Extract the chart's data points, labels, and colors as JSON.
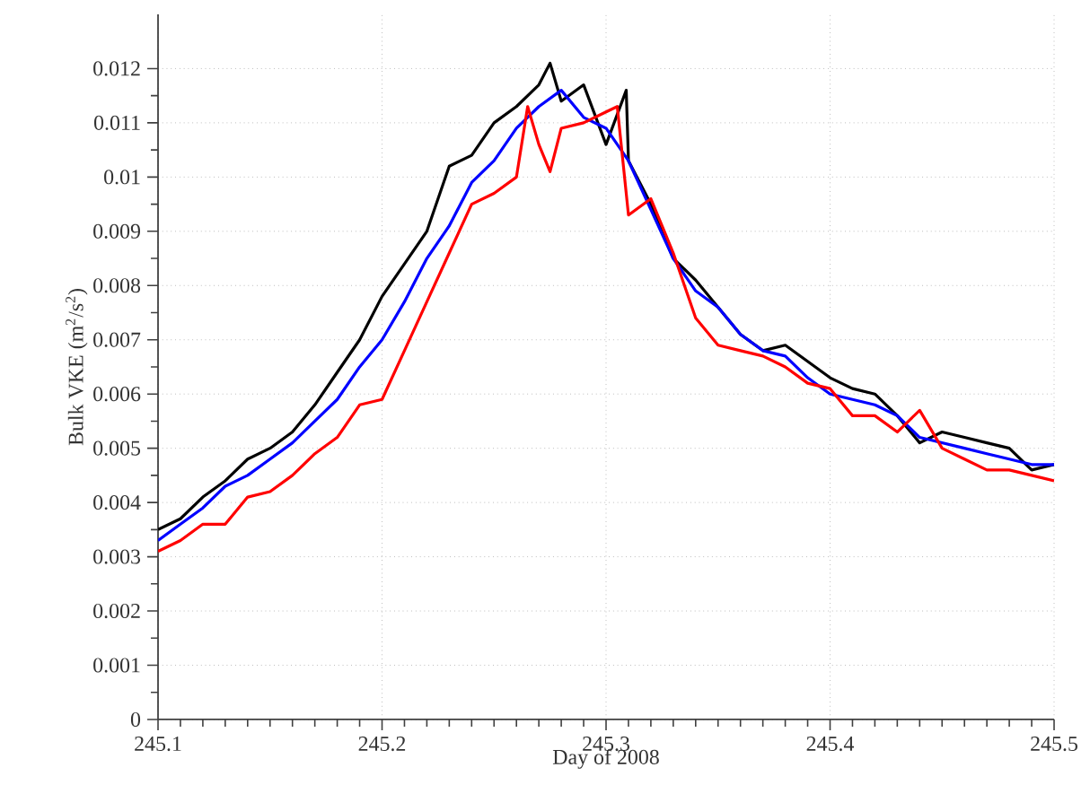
{
  "chart_data": {
    "type": "line",
    "xlabel": "Day of 2008",
    "ylabel": "Bulk VKE (m$^{2}$/s$^{2}$)",
    "xlim": [
      245.1,
      245.5
    ],
    "xticks": [
      245.1,
      245.2,
      245.3,
      245.4,
      245.5
    ],
    "ylim": [
      0,
      0.013
    ],
    "yticks": [
      0,
      0.001,
      0.002,
      0.003,
      0.004,
      0.005,
      0.006,
      0.007,
      0.008,
      0.009,
      0.01,
      0.011,
      0.012
    ],
    "grid": true,
    "line_style": "solid",
    "marker": "none",
    "series": [
      {
        "color": "#000000",
        "x": [
          245.1,
          245.11,
          245.12,
          245.13,
          245.14,
          245.15,
          245.16,
          245.17,
          245.18,
          245.19,
          245.2,
          245.21,
          245.22,
          245.23,
          245.24,
          245.25,
          245.26,
          245.27,
          245.275,
          245.28,
          245.29,
          245.3,
          245.309,
          245.31,
          245.32,
          245.33,
          245.34,
          245.35,
          245.36,
          245.37,
          245.38,
          245.39,
          245.4,
          245.41,
          245.42,
          245.43,
          245.44,
          245.45,
          245.46,
          245.47,
          245.48,
          245.49,
          245.5
        ],
        "values": [
          0.0035,
          0.0037,
          0.0041,
          0.0044,
          0.0048,
          0.005,
          0.0053,
          0.0058,
          0.0064,
          0.007,
          0.0078,
          0.0084,
          0.009,
          0.0102,
          0.0104,
          0.011,
          0.0113,
          0.0117,
          0.0121,
          0.0114,
          0.0117,
          0.0106,
          0.0116,
          0.0103,
          0.0095,
          0.0085,
          0.0081,
          0.0076,
          0.0071,
          0.0068,
          0.0069,
          0.0066,
          0.0063,
          0.0061,
          0.006,
          0.0056,
          0.0051,
          0.0053,
          0.0052,
          0.0051,
          0.005,
          0.0046,
          0.0047
        ]
      },
      {
        "color": "#0000ff",
        "x": [
          245.1,
          245.11,
          245.12,
          245.13,
          245.14,
          245.15,
          245.16,
          245.17,
          245.18,
          245.19,
          245.2,
          245.21,
          245.22,
          245.23,
          245.24,
          245.25,
          245.26,
          245.27,
          245.28,
          245.29,
          245.3,
          245.31,
          245.32,
          245.33,
          245.34,
          245.35,
          245.36,
          245.37,
          245.38,
          245.39,
          245.4,
          245.41,
          245.42,
          245.43,
          245.44,
          245.45,
          245.46,
          245.47,
          245.48,
          245.49,
          245.5
        ],
        "values": [
          0.0033,
          0.0036,
          0.0039,
          0.0043,
          0.0045,
          0.0048,
          0.0051,
          0.0055,
          0.0059,
          0.0065,
          0.007,
          0.0077,
          0.0085,
          0.0091,
          0.0099,
          0.0103,
          0.0109,
          0.0113,
          0.0116,
          0.0111,
          0.0109,
          0.0103,
          0.0094,
          0.0085,
          0.0079,
          0.0076,
          0.0071,
          0.0068,
          0.0067,
          0.0063,
          0.006,
          0.0059,
          0.0058,
          0.0056,
          0.0052,
          0.0051,
          0.005,
          0.0049,
          0.0048,
          0.0047,
          0.0047
        ]
      },
      {
        "color": "#ff0000",
        "x": [
          245.1,
          245.11,
          245.12,
          245.13,
          245.14,
          245.15,
          245.16,
          245.17,
          245.18,
          245.19,
          245.2,
          245.21,
          245.22,
          245.23,
          245.24,
          245.25,
          245.26,
          245.265,
          245.27,
          245.275,
          245.28,
          245.29,
          245.3,
          245.305,
          245.31,
          245.32,
          245.33,
          245.34,
          245.35,
          245.36,
          245.37,
          245.38,
          245.39,
          245.4,
          245.41,
          245.42,
          245.43,
          245.44,
          245.45,
          245.46,
          245.47,
          245.48,
          245.49,
          245.5
        ],
        "values": [
          0.0031,
          0.0033,
          0.0036,
          0.0036,
          0.0041,
          0.0042,
          0.0045,
          0.0049,
          0.0052,
          0.0058,
          0.0059,
          0.0068,
          0.0077,
          0.0086,
          0.0095,
          0.0097,
          0.01,
          0.0113,
          0.0106,
          0.0101,
          0.0109,
          0.011,
          0.0112,
          0.0113,
          0.0093,
          0.0096,
          0.0086,
          0.0074,
          0.0069,
          0.0068,
          0.0067,
          0.0065,
          0.0062,
          0.0061,
          0.0056,
          0.0056,
          0.0053,
          0.0057,
          0.005,
          0.0048,
          0.0046,
          0.0046,
          0.0045,
          0.0044
        ]
      }
    ]
  }
}
